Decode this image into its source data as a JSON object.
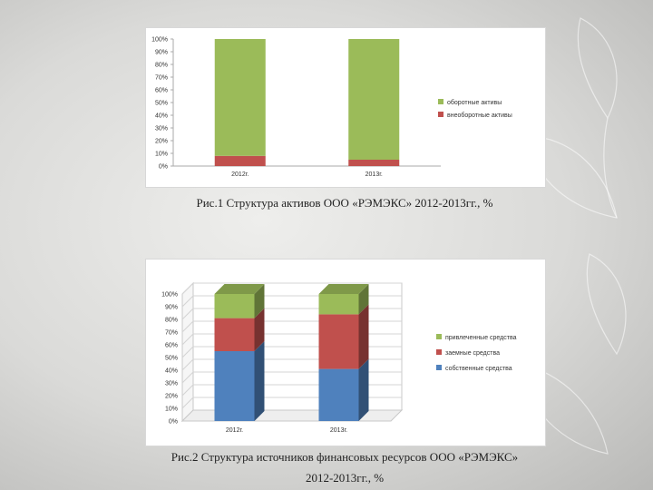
{
  "chart_data": [
    {
      "type": "bar",
      "stacked": true,
      "categories": [
        "2012г.",
        "2013г."
      ],
      "yticks": [
        "0%",
        "10%",
        "20%",
        "30%",
        "40%",
        "50%",
        "60%",
        "70%",
        "80%",
        "90%",
        "100%"
      ],
      "ylim": [
        0,
        100
      ],
      "series": [
        {
          "name": "внеоборотные активы",
          "color": "#c0504d",
          "values": [
            8,
            5
          ]
        },
        {
          "name": "оборотные активы",
          "color": "#9bbb59",
          "values": [
            92,
            95
          ]
        }
      ],
      "legend": "right",
      "grid": false,
      "caption": "Рис.1 Структура активов ООО «РЭМЭКС» 2012-2013гг., %"
    },
    {
      "type": "bar",
      "stacked": true,
      "style": "3d",
      "categories": [
        "2012г.",
        "2013г."
      ],
      "yticks": [
        "0%",
        "10%",
        "20%",
        "30%",
        "40%",
        "50%",
        "60%",
        "70%",
        "80%",
        "90%",
        "100%"
      ],
      "ylim": [
        0,
        100
      ],
      "series": [
        {
          "name": "собственные средства",
          "color": "#4f81bd",
          "values": [
            55,
            41
          ]
        },
        {
          "name": "заемные средства",
          "color": "#c0504d",
          "values": [
            26,
            43
          ]
        },
        {
          "name": "привлеченные средства",
          "color": "#9bbb59",
          "values": [
            19,
            16
          ]
        }
      ],
      "legend": "right",
      "grid": true,
      "caption_line1": "Рис.2 Структура источников финансовых ресурсов ООО «РЭМЭКС»",
      "caption_line2": "2012-2013гг., %"
    }
  ]
}
